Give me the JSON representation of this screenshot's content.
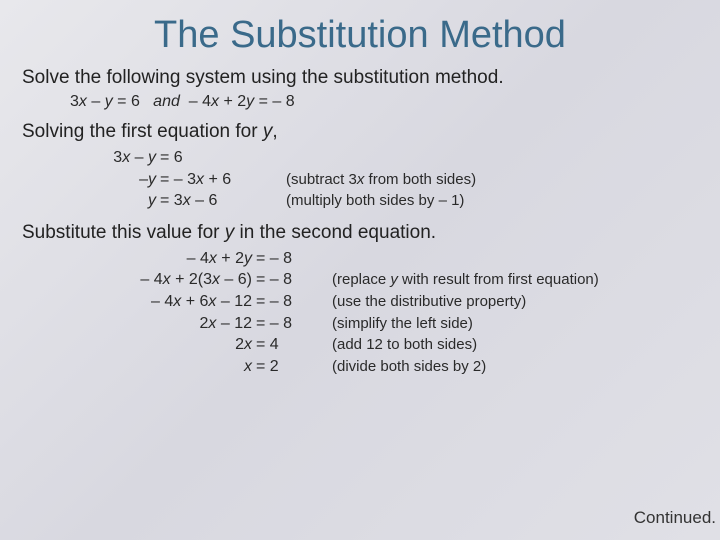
{
  "title": "The Substitution Method",
  "intro": "Solve the following system using the substitution method.",
  "given_eq_html": "3<span class='it'>x</span> – <span class='it'>y</span> = 6&nbsp;&nbsp;&nbsp;<span class='it'>and</span>&nbsp;&nbsp;– 4<span class='it'>x</span> + 2<span class='it'>y</span> = – 8",
  "step1_text_html": "Solving the first equation for <span class='it'>y</span>,",
  "block1": {
    "lhs_w": 86,
    "rhs_w": 100,
    "rows": [
      {
        "lhs": "3<span class='it'>x</span> – <span class='it'>y</span>",
        "rhs": "= 6",
        "expl": ""
      },
      {
        "lhs": "–<span class='it'>y</span>",
        "rhs": "= – 3<span class='it'>x</span> + 6",
        "expl": "(subtract 3<span class='it'>x</span> from both sides)"
      },
      {
        "lhs": "<span class='it'>y</span>",
        "rhs": "= 3<span class='it'>x</span> – 6",
        "expl": "(multiply both sides by – 1)"
      }
    ]
  },
  "step2_text_html": "Substitute this value for <span class='it'>y</span> in the second equation.",
  "block2": {
    "lhs_w": 182,
    "rhs_w": 50,
    "rows": [
      {
        "lhs": "– 4<span class='it'>x</span> + 2<span class='it'>y</span>",
        "rhs": "= – 8",
        "expl": ""
      },
      {
        "lhs": "– 4<span class='it'>x</span> + 2(3<span class='it'>x</span> – 6)",
        "rhs": "= – 8",
        "expl": "(replace <span class='it'>y</span> with result from first equation)"
      },
      {
        "lhs": "– 4<span class='it'>x</span> + 6<span class='it'>x</span> – 12",
        "rhs": "= – 8",
        "expl": "(use the distributive property)"
      },
      {
        "lhs": "2<span class='it'>x</span> – 12",
        "rhs": "= – 8",
        "expl": "(simplify the left side)"
      },
      {
        "lhs": "2<span class='it'>x</span>",
        "rhs": "= 4",
        "expl": "(add 12 to both sides)"
      },
      {
        "lhs": "<span class='it'>x</span>",
        "rhs": "= 2",
        "expl": "(divide both sides by 2)"
      }
    ]
  },
  "continued": "Continued.",
  "colors": {
    "title": "#3a6a8a",
    "text": "#2a2a2a",
    "bg_from": "#e8e8ec",
    "bg_to": "#e0e0e6"
  }
}
